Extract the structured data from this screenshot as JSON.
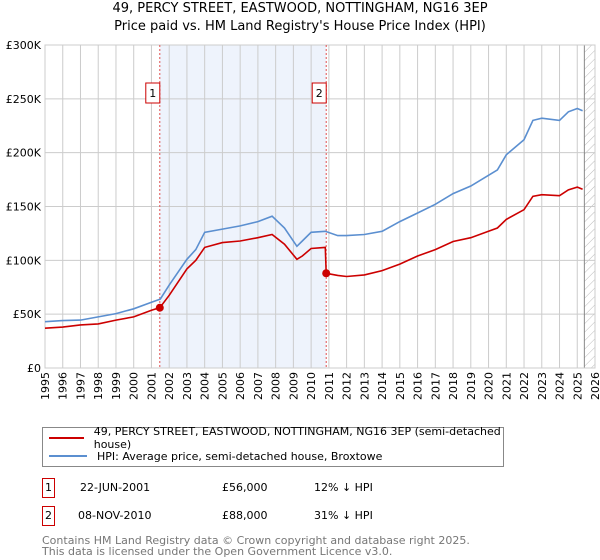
{
  "title_line1": "49, PERCY STREET, EASTWOOD, NOTTINGHAM, NG16 3EP",
  "title_line2": "Price paid vs. HM Land Registry's House Price Index (HPI)",
  "chart_data": {
    "type": "line",
    "title": "49, PERCY STREET, EASTWOOD, NOTTINGHAM, NG16 3EP — Price paid vs. HM Land Registry's House Price Index (HPI)",
    "xlim": [
      1995,
      2026
    ],
    "ylim": [
      0,
      300000
    ],
    "x_ticks": [
      "1995",
      "1996",
      "1997",
      "1998",
      "1999",
      "2000",
      "2001",
      "2002",
      "2003",
      "2004",
      "2005",
      "2006",
      "2007",
      "2008",
      "2009",
      "2010",
      "2011",
      "2012",
      "2013",
      "2014",
      "2015",
      "2016",
      "2017",
      "2018",
      "2019",
      "2020",
      "2021",
      "2022",
      "2023",
      "2024",
      "2025",
      "2026"
    ],
    "y_ticks": [
      {
        "v": 0,
        "label": "£0"
      },
      {
        "v": 50000,
        "label": "£50K"
      },
      {
        "v": 100000,
        "label": "£100K"
      },
      {
        "v": 150000,
        "label": "£150K"
      },
      {
        "v": 200000,
        "label": "£200K"
      },
      {
        "v": 250000,
        "label": "£250K"
      },
      {
        "v": 300000,
        "label": "£300K"
      }
    ],
    "grid": true,
    "shaded_range": [
      2001.47,
      2010.85
    ],
    "forecast_hatch_from": 2025.4,
    "series": [
      {
        "name": "49, PERCY STREET, EASTWOOD, NOTTINGHAM, NG16 3EP (semi-detached house)",
        "color": "#cc0000",
        "x": [
          1995,
          1996,
          1997,
          1998,
          1999,
          2000,
          2001,
          2001.47,
          2002,
          2003,
          2003.5,
          2004,
          2005,
          2006,
          2007,
          2007.8,
          2008.5,
          2009.2,
          2009.5,
          2010,
          2010.8,
          2010.85,
          2011.5,
          2012,
          2013,
          2014,
          2015,
          2016,
          2017,
          2018,
          2019,
          2020,
          2020.5,
          2021,
          2022,
          2022.5,
          2023,
          2024,
          2024.5,
          2025,
          2025.3
        ],
        "y": [
          37000,
          38000,
          40000,
          41000,
          44500,
          47500,
          53700,
          56000,
          67500,
          92000,
          100000,
          112000,
          116500,
          118000,
          121000,
          124000,
          115000,
          101000,
          104000,
          111000,
          112000,
          88000,
          86000,
          85000,
          86500,
          90500,
          96500,
          104000,
          110000,
          117500,
          121000,
          127000,
          130000,
          138000,
          147000,
          159500,
          161000,
          160000,
          165500,
          168000,
          166000
        ]
      },
      {
        "name": "HPI: Average price, semi-detached house, Broxtowe",
        "color": "#5b8fd0",
        "x": [
          1995,
          1996,
          1997,
          1998,
          1999,
          2000,
          2001,
          2001.5,
          2002,
          2003,
          2003.5,
          2004,
          2005,
          2006,
          2007,
          2007.8,
          2008.5,
          2009.2,
          2009.5,
          2010,
          2010.8,
          2011.5,
          2012,
          2013,
          2014,
          2015,
          2016,
          2017,
          2018,
          2019,
          2020,
          2020.5,
          2021,
          2022,
          2022.5,
          2023,
          2024,
          2024.5,
          2025,
          2025.3
        ],
        "y": [
          43000,
          44000,
          44500,
          47500,
          50500,
          55000,
          61000,
          64000,
          77000,
          101000,
          110000,
          126000,
          129000,
          132000,
          136000,
          141000,
          130000,
          113000,
          118000,
          126000,
          127000,
          123000,
          123000,
          124000,
          127000,
          136000,
          144000,
          152000,
          162000,
          169000,
          179000,
          184000,
          198000,
          212000,
          230000,
          232000,
          230000,
          238000,
          241000,
          239000
        ]
      }
    ],
    "annotations": [
      {
        "label": "1",
        "x": 2001.47,
        "y": 56000
      },
      {
        "label": "2",
        "x": 2010.85,
        "y": 88000
      }
    ]
  },
  "legend": [
    {
      "label": "49, PERCY STREET, EASTWOOD, NOTTINGHAM, NG16 3EP (semi-detached house)",
      "color": "#cc0000"
    },
    {
      "label": "HPI: Average price, semi-detached house, Broxtowe",
      "color": "#5b8fd0"
    }
  ],
  "sales": [
    {
      "num": "1",
      "date": "22-JUN-2001",
      "price": "£56,000",
      "delta": "12% ↓ HPI"
    },
    {
      "num": "2",
      "date": "08-NOV-2010",
      "price": "£88,000",
      "delta": "31% ↓ HPI"
    }
  ],
  "footer_line1": "Contains HM Land Registry data © Crown copyright and database right 2025.",
  "footer_line2": "This data is licensed under the Open Government Licence v3.0."
}
